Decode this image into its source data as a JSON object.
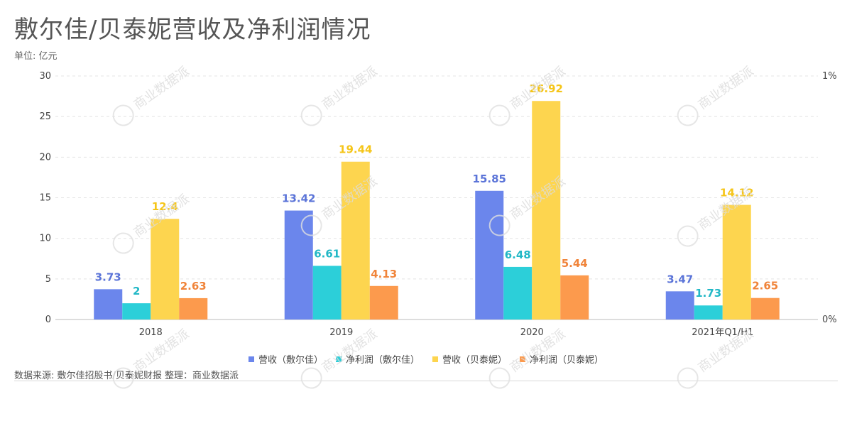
{
  "title": "敷尔佳/贝泰妮营收及净利润情况",
  "unit_label": "单位: 亿元",
  "source_line": "数据来源: 敷尔佳招股书/贝泰妮财报   整理：商业数据派",
  "watermark_text": "商业数据派",
  "chart_data": {
    "type": "bar",
    "categories": [
      "2018",
      "2019",
      "2020",
      "2021年Q1/H1"
    ],
    "series": [
      {
        "name": "营收（敷尔佳）",
        "color": "#6b86ec",
        "label_color": "#5b74d8",
        "values": [
          3.73,
          13.42,
          15.85,
          3.47
        ],
        "labels": [
          "3.73",
          "13.42",
          "15.85",
          "3.47"
        ]
      },
      {
        "name": "净利润（敷尔佳）",
        "color": "#2ccfd9",
        "label_color": "#22b8c6",
        "values": [
          2,
          6.61,
          6.48,
          1.73
        ],
        "labels": [
          "2",
          "6.61",
          "6.48",
          "1.73"
        ]
      },
      {
        "name": "营收（贝泰妮）",
        "color": "#fdd54f",
        "label_color": "#f5c518",
        "values": [
          12.4,
          19.44,
          26.92,
          14.12
        ],
        "labels": [
          "12.4",
          "19.44",
          "26.92",
          "14.12"
        ]
      },
      {
        "name": "净利润（贝泰妮）",
        "color": "#fc9a4d",
        "label_color": "#f0843a",
        "values": [
          2.63,
          4.13,
          5.44,
          2.65
        ],
        "labels": [
          "2.63",
          "4.13",
          "5.44",
          "2.65"
        ]
      }
    ],
    "ylim": [
      0,
      30
    ],
    "y_ticks": [
      "0",
      "5",
      "10",
      "15",
      "20",
      "25",
      "30"
    ],
    "y2_ticks": [
      "0%",
      "1%"
    ],
    "grid": true,
    "legend_position": "bottom"
  }
}
